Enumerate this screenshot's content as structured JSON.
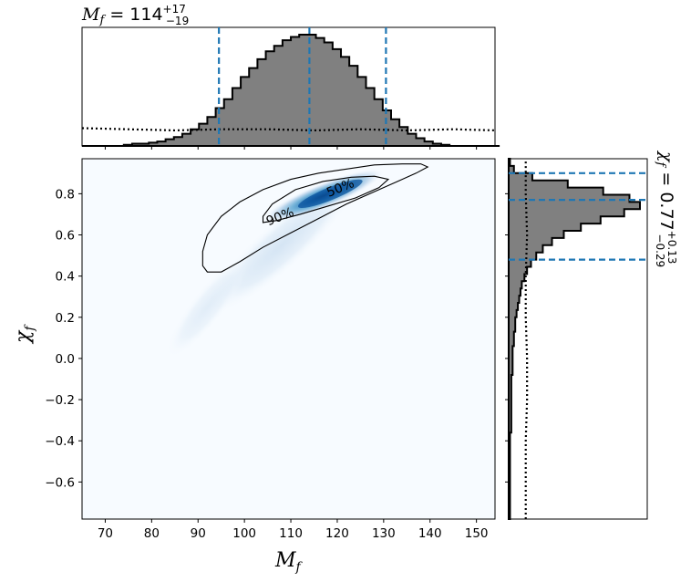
{
  "chart_data": {
    "type": "corner",
    "title": {
      "symbol": "M",
      "subscript": "f",
      "eq": " = ",
      "median": "114",
      "upper": "+17",
      "lower": "−19"
    },
    "right_title": {
      "symbol": "χ",
      "subscript": "f",
      "eq": " = ",
      "median": "0.77",
      "upper": "+0.13",
      "lower": "−0.29"
    },
    "xlabel": {
      "symbol": "M",
      "subscript": "f"
    },
    "ylabel": {
      "symbol": "χ",
      "subscript": "f"
    },
    "xlim": [
      65,
      154
    ],
    "ylim": [
      -0.78,
      0.97
    ],
    "xticks": [
      "70",
      "80",
      "90",
      "100",
      "110",
      "120",
      "130",
      "140",
      "150"
    ],
    "yticks": [
      "−0.6",
      "−0.4",
      "−0.2",
      "0.0",
      "0.2",
      "0.4",
      "0.6",
      "0.8"
    ],
    "mf_quantiles": [
      94.5,
      114,
      130.5
    ],
    "chi_quantiles": [
      0.48,
      0.77,
      0.9
    ],
    "contour_labels": [
      "50%",
      "90%"
    ],
    "colors": {
      "hist_fill": "#808080",
      "quantile_line": "#1f77b4",
      "density_dark": "#08306b",
      "density_light": "#f7fbff"
    },
    "mf_hist": {
      "bin_edges_start": 65,
      "bin_width": 1.8,
      "density": [
        0,
        0,
        0,
        0,
        0,
        0.01,
        0.02,
        0.02,
        0.03,
        0.04,
        0.06,
        0.08,
        0.11,
        0.15,
        0.2,
        0.26,
        0.34,
        0.42,
        0.52,
        0.62,
        0.7,
        0.78,
        0.85,
        0.9,
        0.95,
        0.98,
        1.0,
        1.0,
        0.97,
        0.93,
        0.87,
        0.8,
        0.72,
        0.62,
        0.52,
        0.42,
        0.32,
        0.24,
        0.17,
        0.11,
        0.07,
        0.04,
        0.02,
        0.01,
        0,
        0,
        0,
        0,
        0,
        0
      ]
    },
    "mf_prior": {
      "x": [
        65,
        75,
        85,
        95,
        105,
        115,
        125,
        135,
        145,
        154
      ],
      "density": [
        0.16,
        0.15,
        0.14,
        0.15,
        0.15,
        0.14,
        0.15,
        0.14,
        0.15,
        0.14
      ]
    },
    "chi_hist": {
      "bin_edges_start": -0.78,
      "bin_width": 0.035,
      "density": [
        0.01,
        0.01,
        0.01,
        0.01,
        0.01,
        0.01,
        0.01,
        0.01,
        0.01,
        0.01,
        0.01,
        0.01,
        0.02,
        0.02,
        0.02,
        0.02,
        0.02,
        0.02,
        0.02,
        0.02,
        0.03,
        0.03,
        0.03,
        0.03,
        0.04,
        0.04,
        0.05,
        0.05,
        0.06,
        0.07,
        0.08,
        0.09,
        0.1,
        0.12,
        0.14,
        0.17,
        0.21,
        0.26,
        0.33,
        0.42,
        0.55,
        0.7,
        0.88,
        1.0,
        0.92,
        0.72,
        0.45,
        0.18,
        0.04,
        0.01
      ]
    },
    "chi_prior": {
      "y": [
        -0.78,
        -0.6,
        -0.4,
        -0.2,
        0.0,
        0.2,
        0.4,
        0.6,
        0.8,
        0.97
      ],
      "density": [
        0.13,
        0.13,
        0.13,
        0.14,
        0.14,
        0.13,
        0.13,
        0.14,
        0.13,
        0.13
      ]
    }
  }
}
